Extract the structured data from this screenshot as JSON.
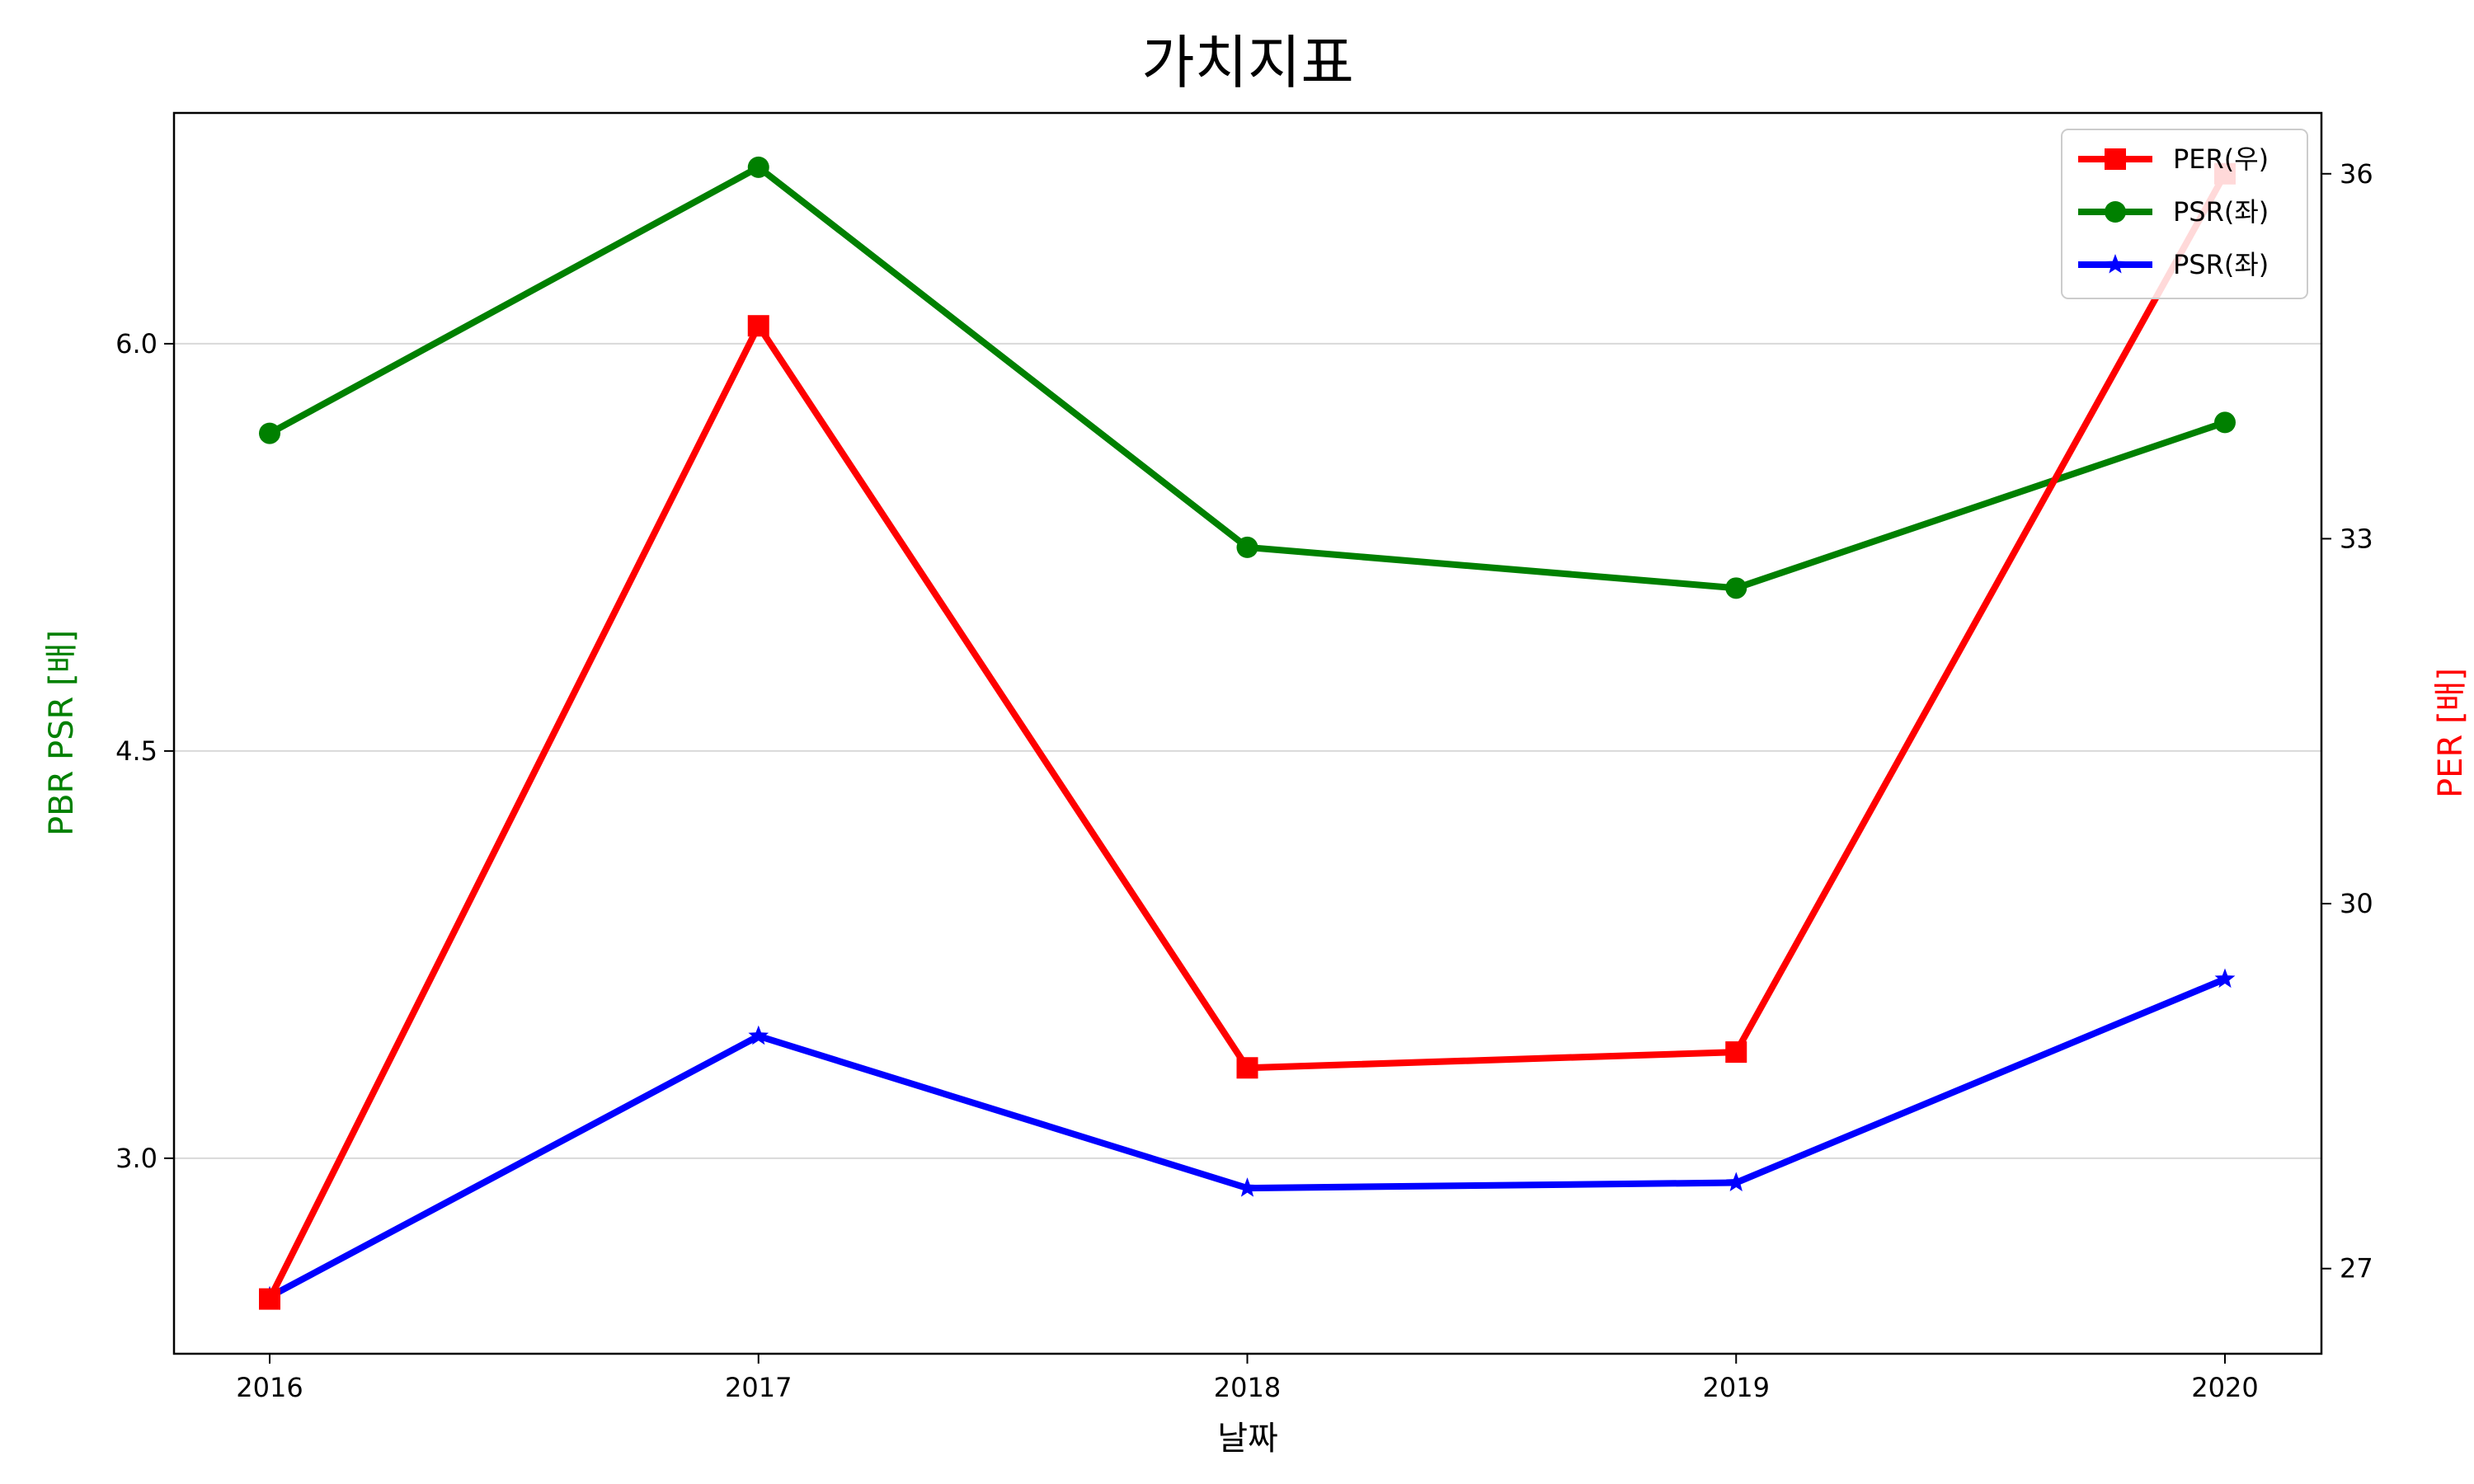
{
  "chart_data": {
    "type": "line",
    "title": "가치지표",
    "xlabel": "날짜",
    "ylabel_left": "PBR PSR [배]",
    "ylabel_right": "PER [배]",
    "categories": [
      "2016",
      "2017",
      "2018",
      "2019",
      "2020"
    ],
    "yticks_left": [
      "3.0",
      "4.5",
      "6.0"
    ],
    "yticks_right": [
      "27",
      "30",
      "33",
      "36"
    ],
    "ylim_left": [
      2.28,
      6.85
    ],
    "ylim_right": [
      26.3,
      36.5
    ],
    "grid": "horizontal",
    "legend_position": "top-right",
    "series": [
      {
        "name": "PER(우)",
        "axis": "right",
        "color": "#ff0000",
        "marker": "square",
        "values": [
          26.75,
          34.75,
          28.65,
          28.78,
          36.0
        ]
      },
      {
        "name": "PSR(좌)",
        "axis": "left",
        "color": "#008000",
        "marker": "circle",
        "values": [
          5.67,
          6.65,
          5.25,
          5.1,
          5.71
        ]
      },
      {
        "name": "PSR(좌)",
        "axis": "left",
        "color": "#0000ff",
        "marker": "star",
        "values": [
          2.49,
          3.45,
          2.89,
          2.91,
          3.66
        ]
      }
    ]
  }
}
